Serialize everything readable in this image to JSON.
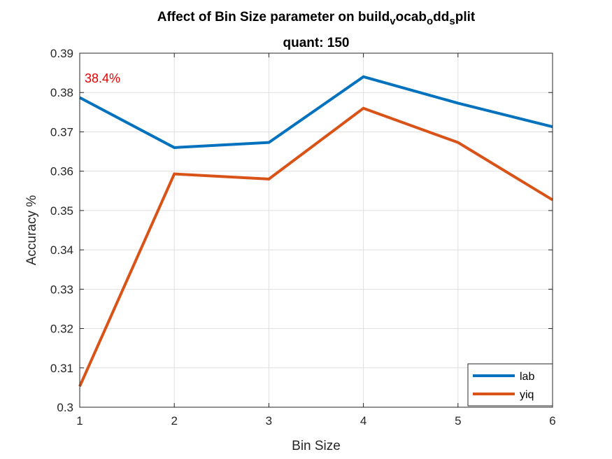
{
  "chart_data": {
    "type": "line",
    "title": {
      "line1_parts": [
        {
          "text": "Affect of Bin Size parameter on build",
          "sub": false
        },
        {
          "text": "v",
          "sub": true
        },
        {
          "text": "ocab",
          "sub": false
        },
        {
          "text": "o",
          "sub": true
        },
        {
          "text": "dd",
          "sub": false
        },
        {
          "text": "s",
          "sub": true
        },
        {
          "text": "plit",
          "sub": false
        }
      ],
      "line2": "quant: 150"
    },
    "xlabel": "Bin Size",
    "ylabel": "Accuracy %",
    "xlim": [
      1,
      6
    ],
    "ylim": [
      0.3,
      0.39
    ],
    "xticks": [
      1,
      2,
      3,
      4,
      5,
      6
    ],
    "xtick_labels": [
      "1",
      "2",
      "3",
      "4",
      "5",
      "6"
    ],
    "yticks": [
      0.3,
      0.31,
      0.32,
      0.33,
      0.34,
      0.35,
      0.36,
      0.37,
      0.38,
      0.39
    ],
    "ytick_labels": [
      "0.3",
      "0.31",
      "0.32",
      "0.33",
      "0.34",
      "0.35",
      "0.36",
      "0.37",
      "0.38",
      "0.39"
    ],
    "grid": true,
    "legend_position": "bottom-right",
    "x": [
      1,
      2,
      3,
      4,
      5,
      6
    ],
    "series": [
      {
        "name": "lab",
        "color": "#0072BD",
        "values": [
          0.3787,
          0.366,
          0.3673,
          0.384,
          0.3773,
          0.3713
        ]
      },
      {
        "name": "yiq",
        "color": "#D95319",
        "values": [
          0.3053,
          0.3593,
          0.358,
          0.376,
          0.3673,
          0.3527
        ]
      }
    ],
    "annotations": [
      {
        "text": "38.4%",
        "color": "#E60000"
      }
    ]
  }
}
